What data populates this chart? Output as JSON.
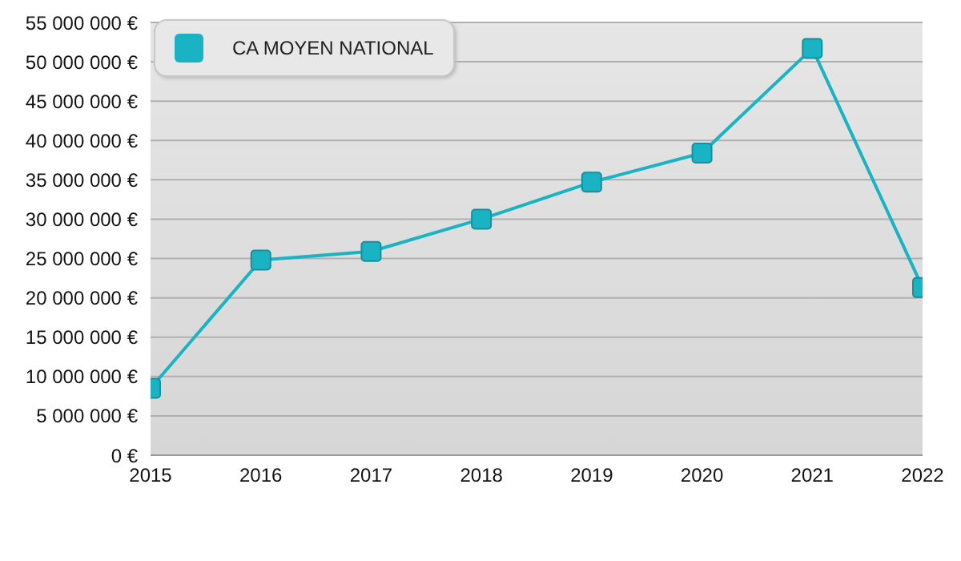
{
  "chart_data": {
    "type": "line",
    "categories": [
      "2015",
      "2016",
      "2017",
      "2018",
      "2019",
      "2020",
      "2021",
      "2022"
    ],
    "series": [
      {
        "name": "CA MOYEN NATIONAL",
        "color": "#1ab3c4",
        "values": [
          8500000,
          24800000,
          25900000,
          30000000,
          34700000,
          38400000,
          51700000,
          21300000
        ]
      }
    ],
    "ylim": [
      0,
      55000000
    ],
    "yticks": [
      {
        "value": 0,
        "label": "0 €"
      },
      {
        "value": 5000000,
        "label": "5 000 000 €"
      },
      {
        "value": 10000000,
        "label": "10 000 000 €"
      },
      {
        "value": 15000000,
        "label": "15 000 000 €"
      },
      {
        "value": 20000000,
        "label": "20 000 000 €"
      },
      {
        "value": 25000000,
        "label": "25 000 000 €"
      },
      {
        "value": 30000000,
        "label": "30 000 000 €"
      },
      {
        "value": 35000000,
        "label": "35 000 000 €"
      },
      {
        "value": 40000000,
        "label": "40 000 000 €"
      },
      {
        "value": 45000000,
        "label": "45 000 000 €"
      },
      {
        "value": 50000000,
        "label": "50 000 000 €"
      },
      {
        "value": 55000000,
        "label": "55 000 000 €"
      }
    ],
    "grid": "y",
    "legend": "top left",
    "marker": "square",
    "line_style": "solid"
  }
}
